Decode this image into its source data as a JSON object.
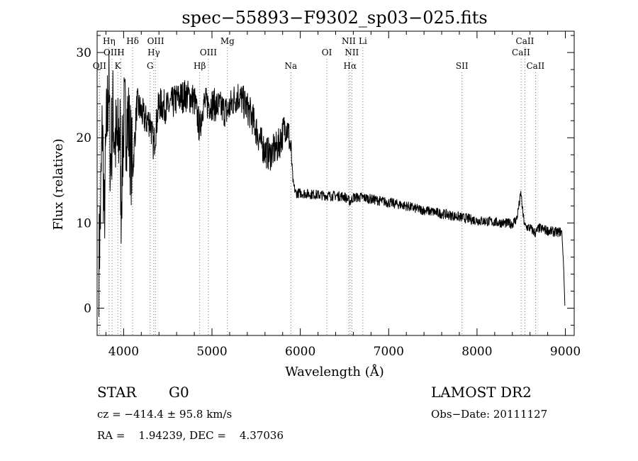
{
  "chart_data": {
    "type": "line",
    "title": "spec−55893−F9302_sp03−025.fits",
    "xlabel": "Wavelength (Å)",
    "ylabel": "Flux (relative)",
    "xlim": [
      3700,
      9100
    ],
    "ylim": [
      -3.2,
      32.5
    ],
    "x_ticks": [
      4000,
      5000,
      6000,
      7000,
      8000,
      9000
    ],
    "y_ticks": [
      0,
      10,
      20,
      30
    ],
    "grid": false,
    "legend": "none",
    "line_color": "#000000",
    "spectrum_anchors": [
      [
        3720,
        5
      ],
      [
        3740,
        12
      ],
      [
        3760,
        22
      ],
      [
        3780,
        10
      ],
      [
        3800,
        19
      ],
      [
        3830,
        27
      ],
      [
        3850,
        17
      ],
      [
        3880,
        23
      ],
      [
        3900,
        20
      ],
      [
        3930,
        19
      ],
      [
        3960,
        21
      ],
      [
        3970,
        12
      ],
      [
        4000,
        22
      ],
      [
        4050,
        22
      ],
      [
        4102,
        16
      ],
      [
        4150,
        24
      ],
      [
        4200,
        23
      ],
      [
        4250,
        22
      ],
      [
        4300,
        22
      ],
      [
        4340,
        19
      ],
      [
        4400,
        24
      ],
      [
        4500,
        23.5
      ],
      [
        4600,
        24.5
      ],
      [
        4700,
        25
      ],
      [
        4800,
        24.5
      ],
      [
        4861,
        21
      ],
      [
        4900,
        24
      ],
      [
        5000,
        24
      ],
      [
        5100,
        23.5
      ],
      [
        5172,
        23
      ],
      [
        5250,
        24.5
      ],
      [
        5300,
        25
      ],
      [
        5400,
        23.5
      ],
      [
        5450,
        22.5
      ],
      [
        5500,
        21
      ],
      [
        5550,
        19.5
      ],
      [
        5600,
        18.5
      ],
      [
        5650,
        18
      ],
      [
        5700,
        18.5
      ],
      [
        5750,
        19
      ],
      [
        5800,
        20.5
      ],
      [
        5830,
        21.5
      ],
      [
        5860,
        21
      ],
      [
        5893,
        18.5
      ],
      [
        5920,
        14.5
      ],
      [
        5950,
        13.5
      ],
      [
        6000,
        13.5
      ],
      [
        6100,
        13.4
      ],
      [
        6200,
        13.3
      ],
      [
        6300,
        13.2
      ],
      [
        6400,
        13.2
      ],
      [
        6500,
        13.1
      ],
      [
        6563,
        12.5
      ],
      [
        6600,
        13
      ],
      [
        6700,
        13
      ],
      [
        6800,
        12.8
      ],
      [
        6900,
        12.6
      ],
      [
        7000,
        12.4
      ],
      [
        7100,
        12.2
      ],
      [
        7200,
        12
      ],
      [
        7300,
        11.7
      ],
      [
        7400,
        11.5
      ],
      [
        7500,
        11.3
      ],
      [
        7600,
        11.1
      ],
      [
        7700,
        10.9
      ],
      [
        7800,
        10.7
      ],
      [
        7900,
        10.5
      ],
      [
        8000,
        10.3
      ],
      [
        8100,
        10.2
      ],
      [
        8200,
        10.1
      ],
      [
        8300,
        10
      ],
      [
        8400,
        9.9
      ],
      [
        8450,
        10.5
      ],
      [
        8498,
        13.5
      ],
      [
        8520,
        11
      ],
      [
        8542,
        9.6
      ],
      [
        8600,
        9.4
      ],
      [
        8662,
        8.8
      ],
      [
        8700,
        9.4
      ],
      [
        8800,
        9.1
      ],
      [
        8900,
        8.9
      ],
      [
        8960,
        9
      ],
      [
        8980,
        5
      ],
      [
        8995,
        0.2
      ]
    ],
    "line_markers": [
      {
        "label": "OII",
        "x": 3727,
        "row": 3
      },
      {
        "label": "Hη",
        "x": 3835,
        "row": 1
      },
      {
        "label": "OIII",
        "x": 3869,
        "row": 2
      },
      {
        "label": "K",
        "x": 3934,
        "row": 3
      },
      {
        "label": "H",
        "x": 3969,
        "row": 2
      },
      {
        "label": "Hδ",
        "x": 4102,
        "row": 1
      },
      {
        "label": "G",
        "x": 4300,
        "row": 3
      },
      {
        "label": "Hγ",
        "x": 4341,
        "row": 2
      },
      {
        "label": "OIII",
        "x": 4363,
        "row": 1
      },
      {
        "label": "Hβ",
        "x": 4861,
        "row": 3
      },
      {
        "label": "OIII",
        "x": 4959,
        "row": 2
      },
      {
        "label": "Mg",
        "x": 5175,
        "row": 1
      },
      {
        "label": "Na",
        "x": 5893,
        "row": 3
      },
      {
        "label": "OI",
        "x": 6300,
        "row": 2
      },
      {
        "label": "Hα",
        "x": 6563,
        "row": 3
      },
      {
        "label": "NII",
        "x": 6583,
        "row": 2
      },
      {
        "label": "NII",
        "x": 6548,
        "row": 1
      },
      {
        "label": "Li",
        "x": 6708,
        "row": 1
      },
      {
        "label": "SII",
        "x": 7830,
        "row": 3
      },
      {
        "label": "CaII",
        "x": 8498,
        "row": 2
      },
      {
        "label": "CaII",
        "x": 8542,
        "row": 1
      },
      {
        "label": "CaII",
        "x": 8662,
        "row": 3
      }
    ]
  },
  "info": {
    "object_class": "STAR",
    "subclass": "G0",
    "survey": "LAMOST DR2",
    "cz": "cz = −414.4 ± 95.8 km/s",
    "obs_date": "Obs−Date: 20111127",
    "coords": "RA =    1.94239, DEC =    4.37036"
  }
}
